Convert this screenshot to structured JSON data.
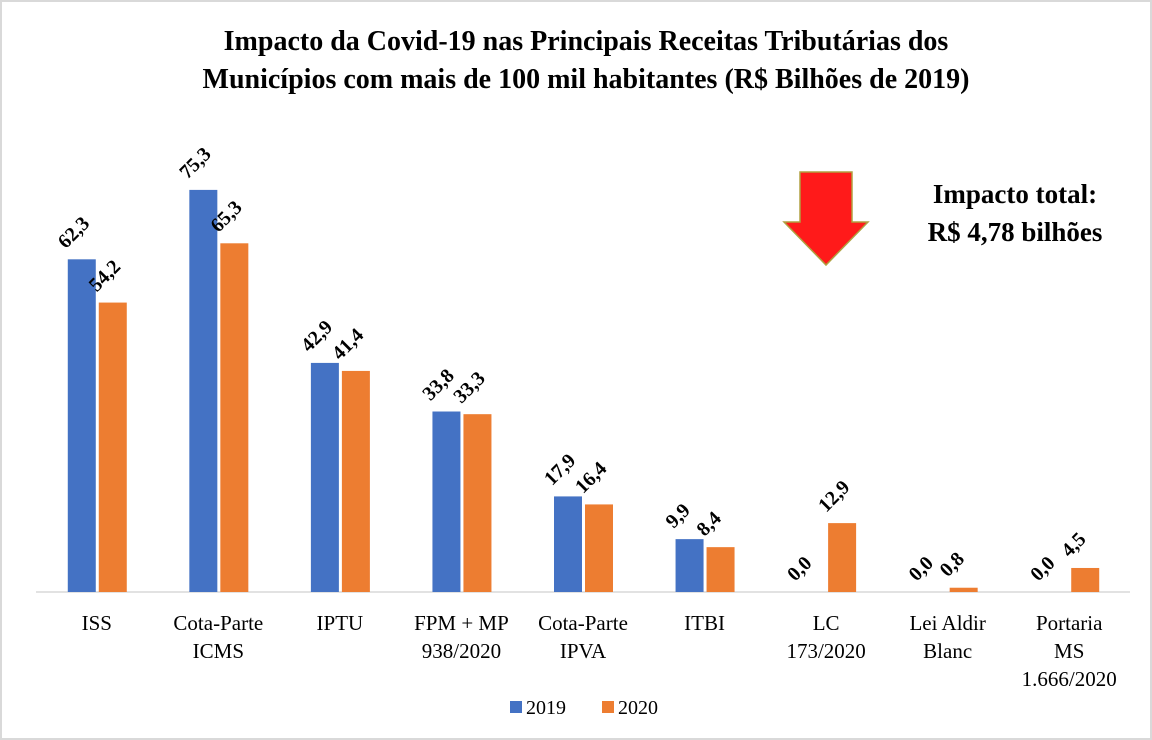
{
  "chart_data": {
    "type": "bar",
    "title": "Impacto da Covid-19 nas Principais Receitas Tributárias dos",
    "subtitle": "Municípios com mais de 100 mil habitantes (R$ Bilhões de 2019)",
    "categories": [
      "ISS",
      "Cota-Parte\nICMS",
      "IPTU",
      "FPM + MP\n938/2020",
      "Cota-Parte\nIPVA",
      "ITBI",
      "LC\n173/2020",
      "Lei Aldir\nBlanc",
      "Portaria\nMS\n1.666/2020"
    ],
    "series": [
      {
        "name": "2019",
        "color": "#4472c4",
        "values": [
          62.3,
          75.3,
          42.9,
          33.8,
          17.9,
          9.9,
          0.0,
          0.0,
          0.0
        ],
        "value_labels": [
          "62,3",
          "75,3",
          "42,9",
          "33,8",
          "17,9",
          "9,9",
          "0,0",
          "0,0",
          "0,0"
        ]
      },
      {
        "name": "2020",
        "color": "#ed7d31",
        "values": [
          54.2,
          65.3,
          41.4,
          33.3,
          16.4,
          8.4,
          12.9,
          0.8,
          4.5
        ],
        "value_labels": [
          "54,2",
          "65,3",
          "41,4",
          "33,3",
          "16,4",
          "8,4",
          "12,9",
          "0,8",
          "4,5"
        ]
      }
    ],
    "annotation": [
      "Impacto total:",
      "R$ 4,78 bilhões"
    ]
  }
}
